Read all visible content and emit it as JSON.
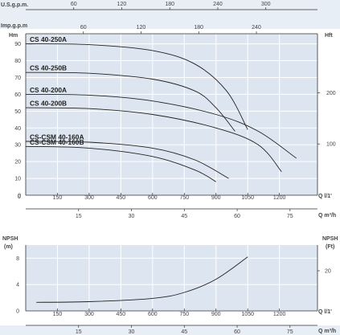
{
  "colors": {
    "panel": "#dde6f0",
    "band": "#e8eef5",
    "grid": "#ffffff",
    "axis": "#333333",
    "curve": "#222222"
  },
  "axes": {
    "usgpm": {
      "label": "U.S.g.p.m.",
      "ticks": [
        "60",
        "120",
        "180",
        "240",
        "300"
      ]
    },
    "impgpm": {
      "label": "Imp.g.p.m",
      "ticks": [
        "60",
        "120",
        "180",
        "240"
      ]
    },
    "head_left": {
      "label": "Hm",
      "ticks": [
        "0",
        "10",
        "20",
        "30",
        "40",
        "50",
        "60",
        "70",
        "80",
        "90"
      ]
    },
    "head_right": {
      "label": "Hft",
      "ticks": [
        "100",
        "200"
      ]
    },
    "q_lmin": {
      "label": "Q l/1'",
      "ticks": [
        "150",
        "300",
        "450",
        "600",
        "750",
        "900",
        "1050",
        "1200"
      ]
    },
    "q_m3h": {
      "label": "Q m³/h",
      "ticks": [
        "15",
        "30",
        "45",
        "60",
        "75"
      ]
    },
    "npsh_left": {
      "label": "NPSH",
      "unit": "(m)",
      "ticks": [
        "0",
        "4",
        "8"
      ]
    },
    "npsh_right": {
      "label": "NPSH",
      "unit": "(Ft)",
      "ticks": [
        "20"
      ]
    },
    "q_lmin_2": {
      "label": "Q l/1'",
      "ticks": [
        "150",
        "300",
        "450",
        "600",
        "750",
        "900",
        "1050",
        "1200"
      ]
    },
    "q_m3h_2": {
      "label": "Q m³/h",
      "ticks": [
        "15",
        "30",
        "45",
        "60",
        "75"
      ]
    }
  },
  "chart_data": [
    {
      "type": "line",
      "xlabel": "Q l/1'",
      "ylabel": "Hm",
      "xlim": [
        0,
        1380
      ],
      "ylim": [
        0,
        96
      ],
      "series": [
        {
          "name": "CS 40-250A",
          "x": [
            0,
            300,
            600,
            800,
            950,
            1050
          ],
          "y": [
            90,
            89.5,
            86,
            78,
            62,
            39
          ]
        },
        {
          "name": "CS 40-250B",
          "x": [
            0,
            300,
            600,
            800,
            900,
            990
          ],
          "y": [
            73,
            72.5,
            69,
            62,
            52,
            38
          ]
        },
        {
          "name": "CS 40-200A",
          "x": [
            0,
            300,
            600,
            900,
            1100,
            1280
          ],
          "y": [
            60,
            59.5,
            56,
            48,
            38,
            22
          ]
        },
        {
          "name": "CS 40-200B",
          "x": [
            0,
            300,
            600,
            900,
            1100,
            1210
          ],
          "y": [
            52,
            51.5,
            48,
            40,
            30,
            14
          ]
        },
        {
          "name": "CS-CSM 40-160A",
          "x": [
            0,
            300,
            600,
            800,
            960
          ],
          "y": [
            32,
            31.5,
            28,
            21,
            10
          ]
        },
        {
          "name": "CS-CSM 40-160B",
          "x": [
            0,
            300,
            600,
            800,
            900
          ],
          "y": [
            29,
            28,
            23,
            15,
            8
          ]
        }
      ]
    },
    {
      "type": "line",
      "xlabel": "Q l/1'",
      "ylabel": "NPSH (m)",
      "xlim": [
        0,
        1380
      ],
      "ylim": [
        0,
        10
      ],
      "series": [
        {
          "name": "",
          "x": [
            50,
            300,
            600,
            750,
            900,
            1050
          ],
          "y": [
            1.3,
            1.4,
            1.9,
            2.8,
            4.8,
            8.2
          ]
        }
      ]
    }
  ]
}
